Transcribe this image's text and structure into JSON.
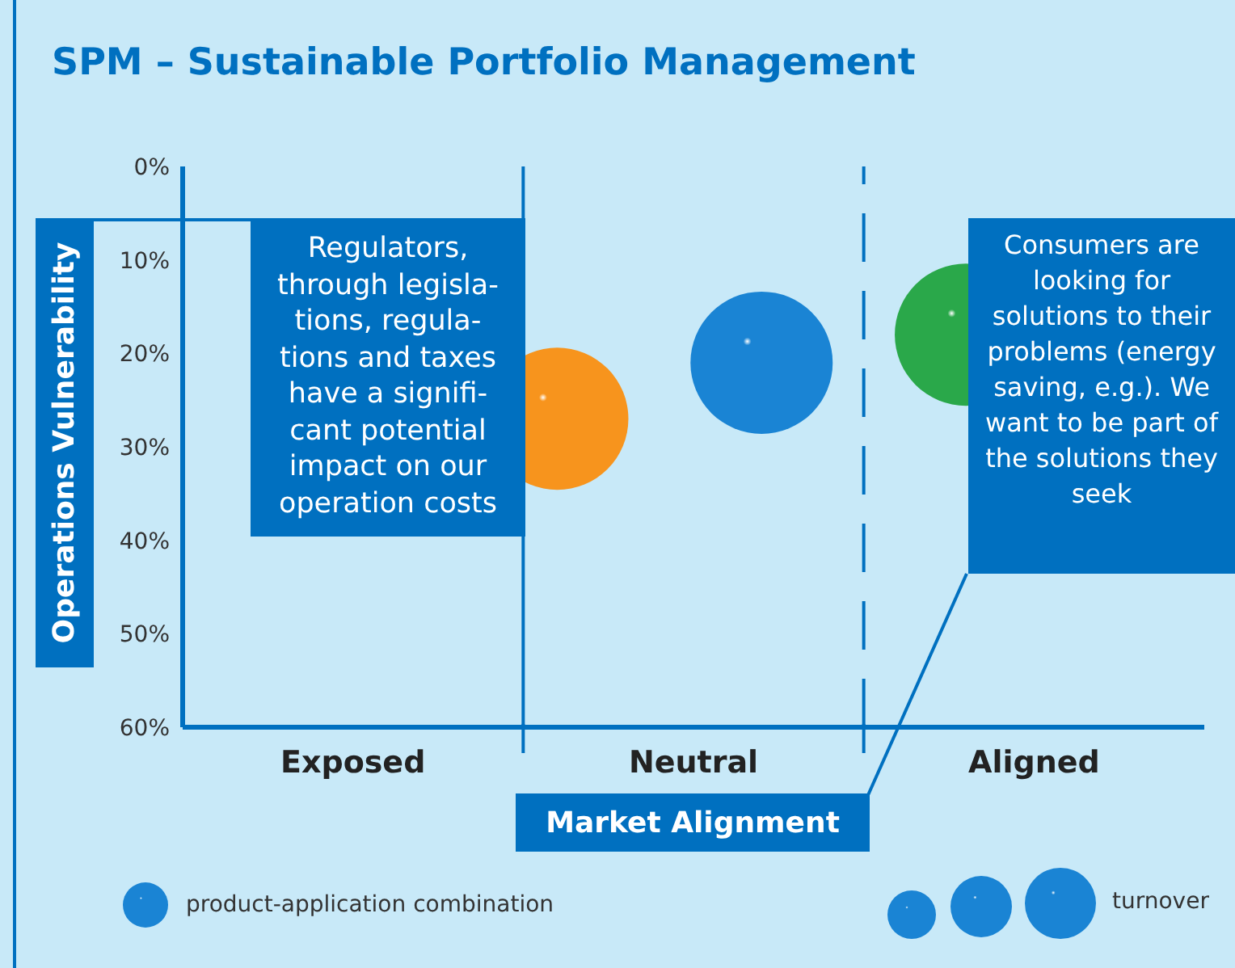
{
  "chart_data": {
    "type": "bubble",
    "title": "SPM – Sustainable Portfolio Management",
    "xlabel": "Market Alignment",
    "ylabel": "Operations Vulnerability",
    "categories": [
      null,
      null,
      "Exposed",
      null,
      null,
      null,
      null,
      "Neutral",
      null,
      null,
      null,
      null,
      "Aligned",
      null,
      null
    ],
    "ylim": [
      60,
      0
    ],
    "yticks": [
      {
        "value": 0,
        "label": "0%"
      },
      {
        "value": 10,
        "label": "10%"
      },
      {
        "value": 20,
        "label": "20%"
      },
      {
        "value": 30,
        "label": "30%"
      },
      {
        "value": 40,
        "label": "40%"
      },
      {
        "value": 50,
        "label": "50%"
      },
      {
        "value": 60,
        "label": "60%"
      }
    ],
    "series": [
      {
        "name": "product-application combination",
        "color": "#1a84d4",
        "values": [
          null,
          null,
          null,
          null,
          null,
          27,
          null,
          null,
          21,
          null,
          null,
          18,
          null,
          null,
          null
        ],
        "sizes": [
          null,
          null,
          null,
          null,
          null,
          1,
          null,
          null,
          1,
          null,
          null,
          1,
          null,
          null,
          null
        ],
        "colors": [
          null,
          null,
          null,
          null,
          null,
          "#f7941d",
          null,
          null,
          "#1a84d4",
          null,
          null,
          "#2aa84a",
          null,
          null,
          null
        ]
      }
    ],
    "annotations": [
      "Regulators, through legisla- tions, regula- tions and taxes have a signifi- cant potential impact on our operation costs",
      "Consumers are looking for solutions to their problems (energy saving, e.g.). We want to be part of the solutions they seek",
      "turnover"
    ],
    "legend": "bottom left"
  }
}
